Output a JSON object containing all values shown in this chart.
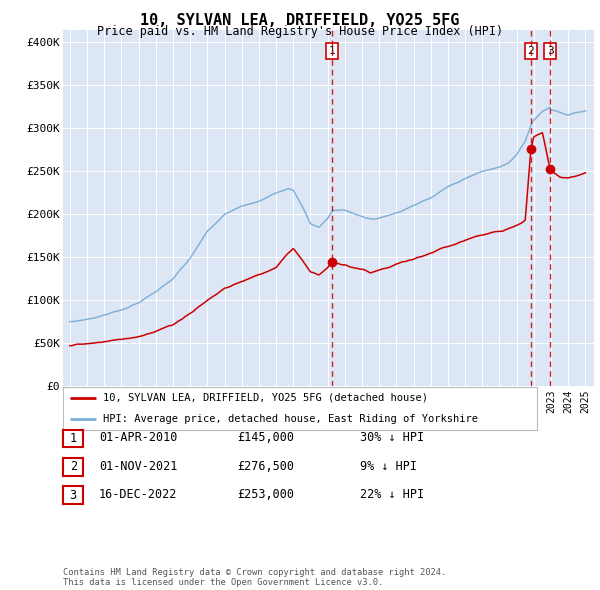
{
  "title": "10, SYLVAN LEA, DRIFFIELD, YO25 5FG",
  "subtitle": "Price paid vs. HM Land Registry's House Price Index (HPI)",
  "ylabel_ticks": [
    "£0",
    "£50K",
    "£100K",
    "£150K",
    "£200K",
    "£250K",
    "£300K",
    "£350K",
    "£400K"
  ],
  "ytick_values": [
    0,
    50000,
    100000,
    150000,
    200000,
    250000,
    300000,
    350000,
    400000
  ],
  "ylim": [
    0,
    415000
  ],
  "background_color": "#dce6f5",
  "line_color_red": "#cc0000",
  "line_color_blue": "#7aaed6",
  "grid_color": "#ffffff",
  "transactions": [
    {
      "date": "2010-04-01",
      "price": 145000,
      "label": "1"
    },
    {
      "date": "2021-11-01",
      "price": 276500,
      "label": "2"
    },
    {
      "date": "2022-12-16",
      "price": 253000,
      "label": "3"
    }
  ],
  "legend_entries": [
    "10, SYLVAN LEA, DRIFFIELD, YO25 5FG (detached house)",
    "HPI: Average price, detached house, East Riding of Yorkshire"
  ],
  "table_rows": [
    {
      "num": "1",
      "date": "01-APR-2010",
      "price": "£145,000",
      "note": "30% ↓ HPI"
    },
    {
      "num": "2",
      "date": "01-NOV-2021",
      "price": "£276,500",
      "note": "9% ↓ HPI"
    },
    {
      "num": "3",
      "date": "16-DEC-2022",
      "price": "£253,000",
      "note": "22% ↓ HPI"
    }
  ],
  "footer": "Contains HM Land Registry data © Crown copyright and database right 2024.\nThis data is licensed under the Open Government Licence v3.0."
}
